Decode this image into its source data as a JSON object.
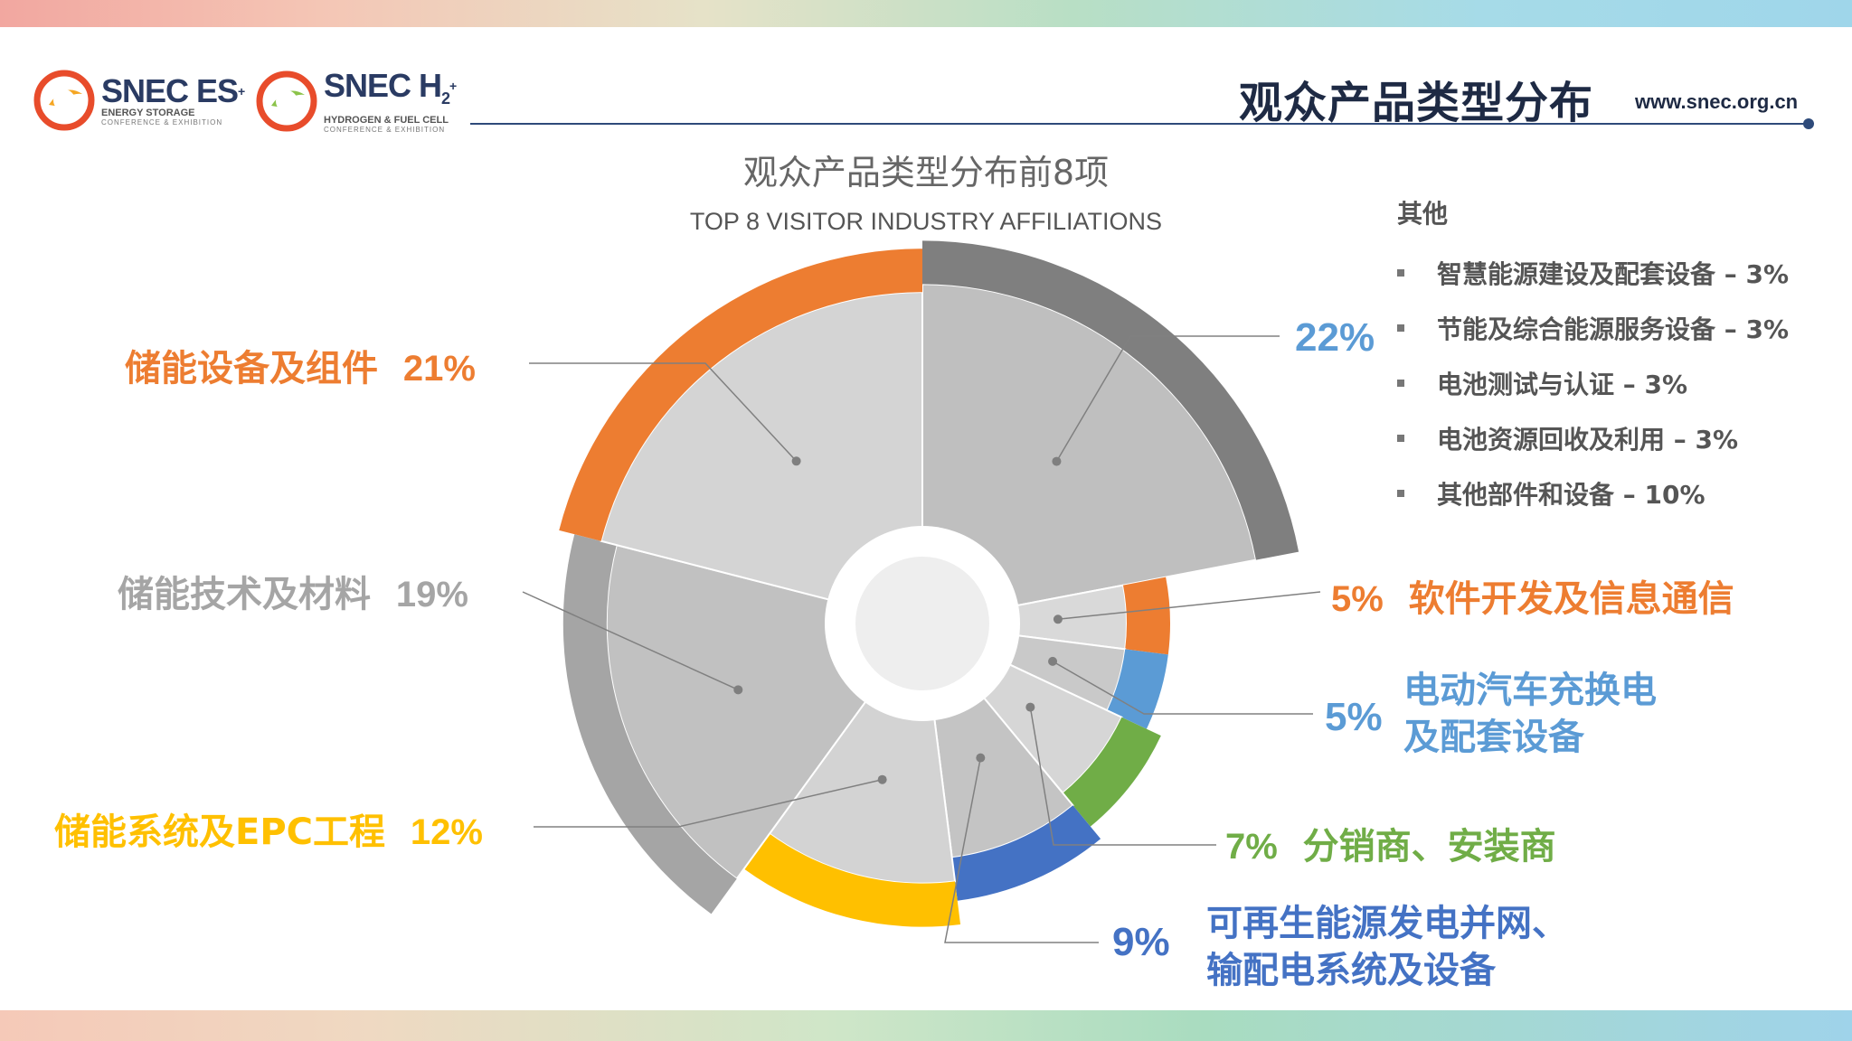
{
  "header": {
    "title": "观众产品类型分布",
    "url": "www.snec.org.cn",
    "logo_es": {
      "name": "SNEC ES",
      "sup": "+",
      "line1": "ENERGY STORAGE",
      "line2": "CONFERENCE & EXHIBITION"
    },
    "logo_h2": {
      "name": "SNEC H",
      "sub": "2",
      "sup": "+",
      "line1": "HYDROGEN & FUEL CELL",
      "line2": "CONFERENCE & EXHIBITION"
    }
  },
  "chart_data": {
    "type": "polar-area",
    "title": "观众产品类型分布前8项",
    "subtitle": "TOP 8 VISITOR INDUSTRY AFFILIATIONS",
    "unit": "%",
    "slices": [
      {
        "pct": "22%",
        "label": "",
        "value": 22,
        "ring_color": "#7f7f7f",
        "label_color": "#5b9bd5"
      },
      {
        "pct": "5%",
        "label": "软件开发及信息通信",
        "value": 5,
        "ring_color": "#ed7d31",
        "label_color": "#ed7d31"
      },
      {
        "pct": "5%",
        "label": "电动汽车充换电",
        "label2": "及配套设备",
        "value": 5,
        "ring_color": "#5b9bd5",
        "label_color": "#5b9bd5"
      },
      {
        "pct": "7%",
        "label": "分销商、安装商",
        "value": 7,
        "ring_color": "#70ad47",
        "label_color": "#70ad47"
      },
      {
        "pct": "9%",
        "label": "可再生能源发电并网、",
        "label2": "输配电系统及设备",
        "value": 9,
        "ring_color": "#4472c4",
        "label_color": "#4472c4"
      },
      {
        "pct": "12%",
        "label": "储能系统及EPC工程",
        "value": 12,
        "ring_color": "#ffc000",
        "label_color": "#ffc000"
      },
      {
        "pct": "19%",
        "label": "储能技术及材料",
        "value": 19,
        "ring_color": "#a5a5a5",
        "label_color": "#a5a5a5"
      },
      {
        "pct": "21%",
        "label": "储能设备及组件",
        "value": 21,
        "ring_color": "#ed7d31",
        "label_color": "#ed7d31"
      }
    ],
    "others": {
      "title": "其他",
      "items": [
        "智慧能源建设及配套设备 – 3%",
        "节能及综合能源服务设备 – 3%",
        "电池测试与认证 – 3%",
        "电池资源回收及利用 – 3%",
        "其他部件和设备 – 10%"
      ]
    }
  }
}
